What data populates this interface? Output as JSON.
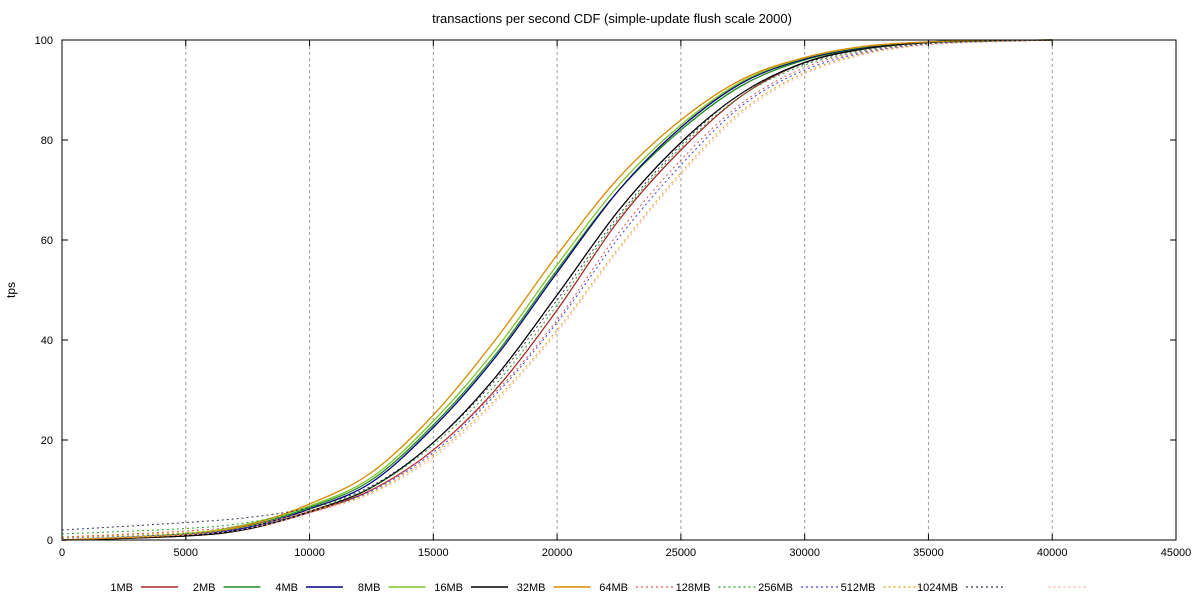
{
  "chart_data": {
    "type": "line",
    "title": "transactions per second CDF (simple-update flush scale 2000)",
    "xlabel": "",
    "ylabel": "tps",
    "xlim": [
      0,
      45000
    ],
    "ylim": [
      0,
      100
    ],
    "x_ticks": [
      0,
      5000,
      10000,
      15000,
      20000,
      25000,
      30000,
      35000,
      40000,
      45000
    ],
    "y_ticks": [
      0,
      20,
      40,
      60,
      80,
      100
    ],
    "grid": "vertical dashed",
    "legend_position": "bottom",
    "series": [
      {
        "name": "1MB",
        "color": "#a52a2a",
        "style": "solid",
        "points": [
          [
            0,
            0
          ],
          [
            5000,
            0.8
          ],
          [
            7500,
            2.2
          ],
          [
            10000,
            5.5
          ],
          [
            12500,
            10
          ],
          [
            15000,
            18
          ],
          [
            17500,
            30
          ],
          [
            20000,
            46
          ],
          [
            22500,
            64
          ],
          [
            25000,
            78
          ],
          [
            27500,
            89
          ],
          [
            30000,
            95.5
          ],
          [
            32500,
            98.3
          ],
          [
            35000,
            99.5
          ],
          [
            37500,
            99.8
          ],
          [
            40000,
            100
          ]
        ]
      },
      {
        "name": "2MB",
        "color": "#228b22",
        "style": "solid",
        "points": [
          [
            0,
            0
          ],
          [
            5000,
            1
          ],
          [
            7500,
            2.8
          ],
          [
            10000,
            6.5
          ],
          [
            12500,
            12
          ],
          [
            15000,
            23
          ],
          [
            17500,
            37
          ],
          [
            20000,
            54
          ],
          [
            22500,
            70
          ],
          [
            25000,
            82
          ],
          [
            27500,
            91
          ],
          [
            30000,
            96
          ],
          [
            32500,
            98.5
          ],
          [
            35000,
            99.6
          ],
          [
            37500,
            99.9
          ],
          [
            40000,
            100
          ]
        ]
      },
      {
        "name": "4MB",
        "color": "#000080",
        "style": "solid",
        "points": [
          [
            0,
            0
          ],
          [
            5000,
            0.9
          ],
          [
            7500,
            2.5
          ],
          [
            10000,
            6.2
          ],
          [
            12500,
            11.5
          ],
          [
            15000,
            22.5
          ],
          [
            17500,
            36.5
          ],
          [
            20000,
            53.5
          ],
          [
            22500,
            70
          ],
          [
            25000,
            82.5
          ],
          [
            27500,
            91.5
          ],
          [
            30000,
            96.2
          ],
          [
            32500,
            98.6
          ],
          [
            35000,
            99.6
          ],
          [
            37500,
            99.9
          ],
          [
            40000,
            100
          ]
        ]
      },
      {
        "name": "8MB",
        "color": "#7cc427",
        "style": "solid",
        "points": [
          [
            0,
            0
          ],
          [
            5000,
            1.3
          ],
          [
            7500,
            3.2
          ],
          [
            10000,
            6.8
          ],
          [
            12500,
            12.5
          ],
          [
            15000,
            23.8
          ],
          [
            17500,
            38
          ],
          [
            20000,
            55
          ],
          [
            22500,
            71
          ],
          [
            25000,
            83
          ],
          [
            27500,
            91.8
          ],
          [
            30000,
            96.4
          ],
          [
            32500,
            98.7
          ],
          [
            35000,
            99.6
          ],
          [
            37500,
            99.9
          ],
          [
            40000,
            100
          ]
        ]
      },
      {
        "name": "16MB",
        "color": "#000000",
        "style": "solid",
        "points": [
          [
            0,
            0
          ],
          [
            5000,
            0.8
          ],
          [
            7500,
            2.2
          ],
          [
            10000,
            5.7
          ],
          [
            12500,
            10.5
          ],
          [
            15000,
            19.5
          ],
          [
            17500,
            32.5
          ],
          [
            20000,
            49
          ],
          [
            22500,
            66
          ],
          [
            25000,
            79.5
          ],
          [
            27500,
            89.5
          ],
          [
            30000,
            95.5
          ],
          [
            32500,
            98.3
          ],
          [
            35000,
            99.5
          ],
          [
            37500,
            99.8
          ],
          [
            40000,
            100
          ]
        ]
      },
      {
        "name": "32MB",
        "color": "#d98a00",
        "style": "solid",
        "points": [
          [
            0,
            0
          ],
          [
            5000,
            1.1
          ],
          [
            7500,
            3
          ],
          [
            10000,
            7.2
          ],
          [
            12500,
            13.5
          ],
          [
            15000,
            25
          ],
          [
            17500,
            40
          ],
          [
            20000,
            57
          ],
          [
            22500,
            72.5
          ],
          [
            25000,
            84
          ],
          [
            27500,
            92.2
          ],
          [
            30000,
            96.5
          ],
          [
            32500,
            98.8
          ],
          [
            35000,
            99.6
          ],
          [
            37500,
            99.9
          ],
          [
            40000,
            100
          ]
        ]
      },
      {
        "name": "64MB",
        "color": "#e05050",
        "style": "dotted",
        "points": [
          [
            0,
            0.6
          ],
          [
            5000,
            1.8
          ],
          [
            7500,
            3
          ],
          [
            10000,
            5.8
          ],
          [
            12500,
            10
          ],
          [
            15000,
            18
          ],
          [
            17500,
            29.5
          ],
          [
            20000,
            44
          ],
          [
            22500,
            61.5
          ],
          [
            25000,
            76
          ],
          [
            27500,
            87.5
          ],
          [
            30000,
            94.5
          ],
          [
            32500,
            97.8
          ],
          [
            35000,
            99.3
          ],
          [
            37500,
            99.7
          ],
          [
            40000,
            100
          ]
        ]
      },
      {
        "name": "128MB",
        "color": "#22a022",
        "style": "dotted",
        "points": [
          [
            0,
            1.2
          ],
          [
            5000,
            2.3
          ],
          [
            7500,
            3.5
          ],
          [
            10000,
            6.2
          ],
          [
            12500,
            10.5
          ],
          [
            15000,
            19
          ],
          [
            17500,
            31
          ],
          [
            20000,
            47
          ],
          [
            22500,
            64.5
          ],
          [
            25000,
            78.5
          ],
          [
            27500,
            89
          ],
          [
            30000,
            95
          ],
          [
            32500,
            98
          ],
          [
            35000,
            99.4
          ],
          [
            37500,
            99.8
          ],
          [
            40000,
            100
          ]
        ]
      },
      {
        "name": "256MB",
        "color": "#3a3ae0",
        "style": "dotted",
        "points": [
          [
            0,
            0.3
          ],
          [
            5000,
            1.2
          ],
          [
            7500,
            2.6
          ],
          [
            10000,
            5.6
          ],
          [
            12500,
            9.8
          ],
          [
            15000,
            17.5
          ],
          [
            17500,
            29
          ],
          [
            20000,
            43.5
          ],
          [
            22500,
            60.5
          ],
          [
            25000,
            75
          ],
          [
            27500,
            87
          ],
          [
            30000,
            94
          ],
          [
            32500,
            97.6
          ],
          [
            35000,
            99.2
          ],
          [
            37500,
            99.7
          ],
          [
            40000,
            100
          ]
        ]
      },
      {
        "name": "512MB",
        "color": "#e0a000",
        "style": "dotted",
        "points": [
          [
            0,
            0.5
          ],
          [
            5000,
            1.5
          ],
          [
            7500,
            2.7
          ],
          [
            10000,
            5.7
          ],
          [
            12500,
            9.5
          ],
          [
            15000,
            17
          ],
          [
            17500,
            28
          ],
          [
            20000,
            42
          ],
          [
            22500,
            58.5
          ],
          [
            25000,
            73.5
          ],
          [
            27500,
            86
          ],
          [
            30000,
            93.5
          ],
          [
            32500,
            97.4
          ],
          [
            35000,
            99.1
          ],
          [
            37500,
            99.7
          ],
          [
            40000,
            100
          ]
        ]
      },
      {
        "name": "1024MB",
        "color": "#333355",
        "style": "dotted",
        "points": [
          [
            0,
            2
          ],
          [
            5000,
            3.5
          ],
          [
            7500,
            4.5
          ],
          [
            10000,
            6.5
          ],
          [
            12500,
            10.8
          ],
          [
            15000,
            19.5
          ],
          [
            17500,
            32
          ],
          [
            20000,
            48
          ],
          [
            22500,
            65
          ],
          [
            25000,
            79
          ],
          [
            27500,
            89.5
          ],
          [
            30000,
            95.3
          ],
          [
            32500,
            98.2
          ],
          [
            35000,
            99.4
          ],
          [
            37500,
            99.8
          ],
          [
            40000,
            100
          ]
        ]
      },
      {
        "name": "",
        "color": "#f0b0a0",
        "style": "dotted",
        "points": [
          [
            0,
            0.2
          ],
          [
            5000,
            1
          ],
          [
            7500,
            2.3
          ],
          [
            10000,
            5.4
          ],
          [
            12500,
            9.3
          ],
          [
            15000,
            16.5
          ],
          [
            17500,
            27.5
          ],
          [
            20000,
            41.5
          ],
          [
            22500,
            58
          ],
          [
            25000,
            73
          ],
          [
            27500,
            85.5
          ],
          [
            30000,
            93.2
          ],
          [
            32500,
            97.2
          ],
          [
            35000,
            99
          ],
          [
            37500,
            99.6
          ],
          [
            40000,
            100
          ],
          [
            41000,
            100
          ]
        ]
      }
    ]
  }
}
